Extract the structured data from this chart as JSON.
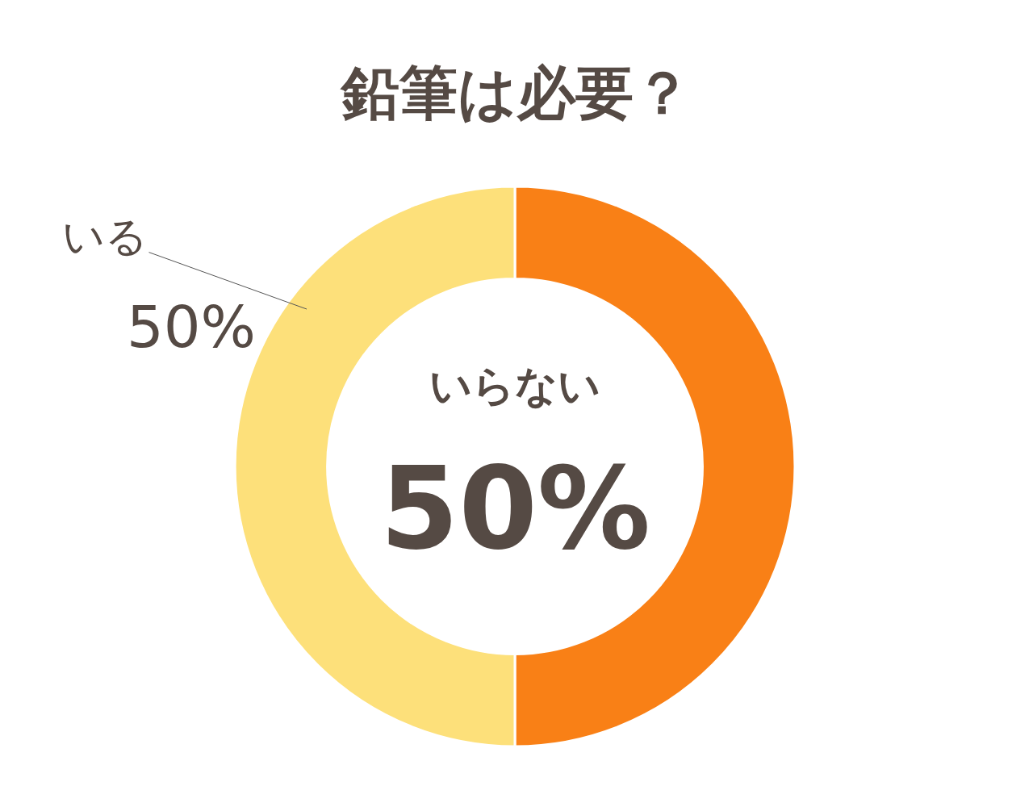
{
  "chart_data": {
    "type": "donut",
    "title": "鉛筆は必要？",
    "categories": [
      "いらない",
      "いる"
    ],
    "values": [
      50,
      50
    ],
    "colors": [
      "#f98016",
      "#fde07a"
    ],
    "value_labels": [
      "50%",
      "50%"
    ],
    "legend": false
  }
}
